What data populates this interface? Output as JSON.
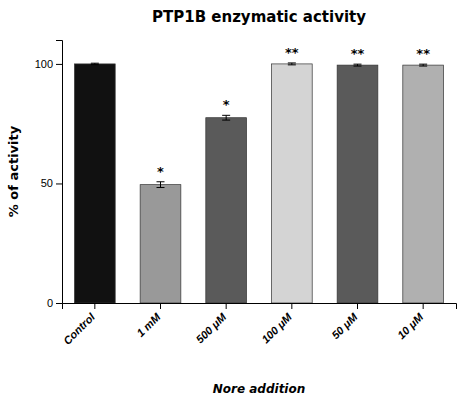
{
  "chart_data": {
    "type": "bar",
    "title": "PTP1B enzymatic activity",
    "ylabel": "% of activity",
    "xlabel": "Nore addition",
    "categories": [
      "Control",
      "1 mM",
      "500 μM",
      "100 μM",
      "50 μM",
      "10 μM"
    ],
    "values": [
      100,
      49.5,
      77.5,
      100,
      99.5,
      99.5
    ],
    "errors": [
      0.3,
      1.2,
      1.0,
      0.4,
      0.4,
      0.4
    ],
    "colors": [
      "#111111",
      "#999999",
      "#5a5a5a",
      "#d4d4d4",
      "#5a5a5a",
      "#b0b0b0"
    ],
    "annotations": [
      null,
      "*",
      "*",
      "**",
      "**",
      "**"
    ],
    "ylim": [
      0,
      110
    ],
    "yticks": [
      0,
      50,
      100
    ]
  }
}
